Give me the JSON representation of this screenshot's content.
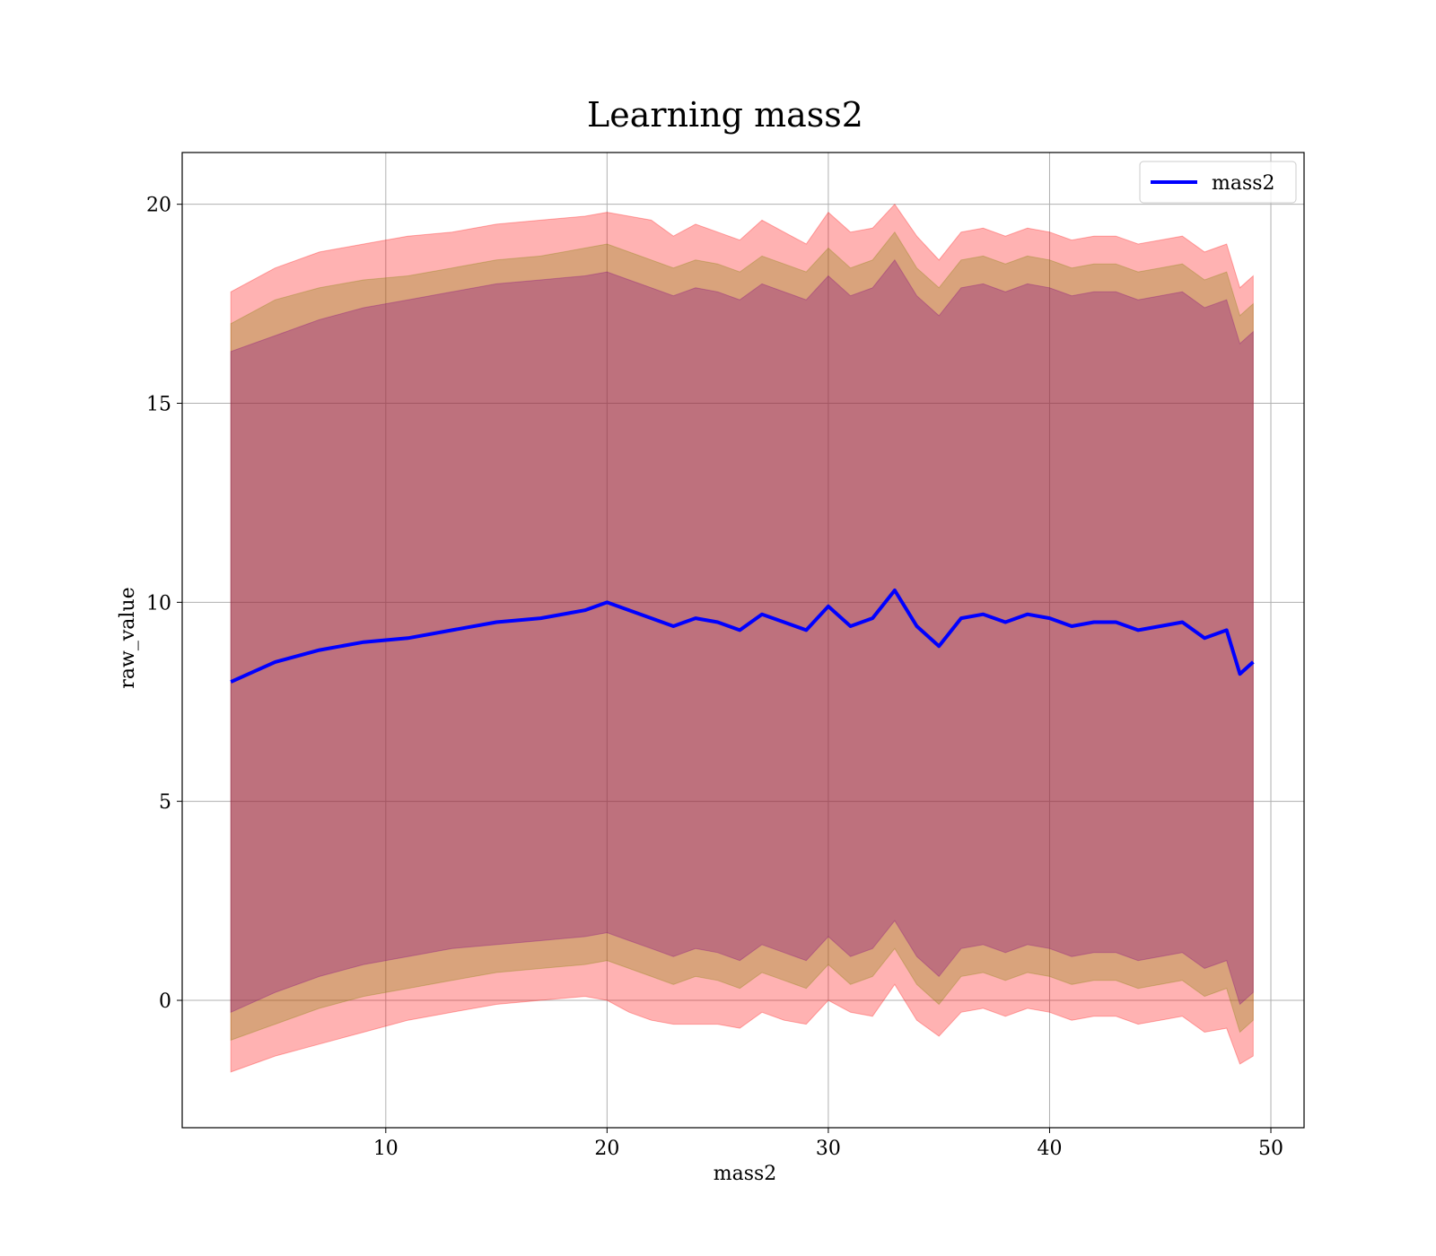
{
  "chart_data": {
    "type": "line",
    "title": "Learning mass2",
    "xlabel": "mass2",
    "ylabel": "raw_value",
    "xlim": [
      0.8,
      51.5
    ],
    "ylim": [
      -3.2,
      21.3
    ],
    "xticks": [
      10,
      20,
      30,
      40,
      50
    ],
    "yticks": [
      0,
      5,
      10,
      15,
      20
    ],
    "grid": true,
    "legend": {
      "placement": "top-right",
      "entries": [
        "mass2"
      ]
    },
    "colors": {
      "line": "#0000ff",
      "band_outer": "#ff0000",
      "band_middle": "#808000",
      "band_inner": "#800080"
    },
    "series": [
      {
        "name": "mass2",
        "x": [
          3.0,
          5.0,
          7.0,
          9.0,
          11.0,
          13.0,
          15.0,
          17.0,
          19.0,
          20.0,
          21.0,
          22.0,
          23.0,
          24.0,
          25.0,
          26.0,
          27.0,
          28.0,
          29.0,
          30.0,
          31.0,
          32.0,
          33.0,
          34.0,
          35.0,
          36.0,
          37.0,
          38.0,
          39.0,
          40.0,
          41.0,
          42.0,
          43.0,
          44.0,
          45.0,
          46.0,
          47.0,
          48.0,
          48.6,
          49.2
        ],
        "y": [
          8.0,
          8.5,
          8.8,
          9.0,
          9.1,
          9.3,
          9.5,
          9.6,
          9.8,
          10.0,
          9.8,
          9.6,
          9.4,
          9.6,
          9.5,
          9.3,
          9.7,
          9.5,
          9.3,
          9.9,
          9.4,
          9.6,
          10.3,
          9.4,
          8.9,
          9.6,
          9.7,
          9.5,
          9.7,
          9.6,
          9.4,
          9.5,
          9.5,
          9.3,
          9.4,
          9.5,
          9.1,
          9.3,
          8.2,
          8.5
        ]
      }
    ],
    "bands": [
      {
        "label": "outer",
        "x": [
          3.0,
          5.0,
          7.0,
          9.0,
          11.0,
          13.0,
          15.0,
          17.0,
          19.0,
          20.0,
          21.0,
          22.0,
          23.0,
          24.0,
          25.0,
          26.0,
          27.0,
          28.0,
          29.0,
          30.0,
          31.0,
          32.0,
          33.0,
          34.0,
          35.0,
          36.0,
          37.0,
          38.0,
          39.0,
          40.0,
          41.0,
          42.0,
          43.0,
          44.0,
          45.0,
          46.0,
          47.0,
          48.0,
          48.6,
          49.2
        ],
        "lower": [
          -1.8,
          -1.4,
          -1.1,
          -0.8,
          -0.5,
          -0.3,
          -0.1,
          0.0,
          0.1,
          0.0,
          -0.3,
          -0.5,
          -0.6,
          -0.6,
          -0.6,
          -0.7,
          -0.3,
          -0.5,
          -0.6,
          0.0,
          -0.3,
          -0.4,
          0.4,
          -0.5,
          -0.9,
          -0.3,
          -0.2,
          -0.4,
          -0.2,
          -0.3,
          -0.5,
          -0.4,
          -0.4,
          -0.6,
          -0.5,
          -0.4,
          -0.8,
          -0.7,
          -1.6,
          -1.4
        ],
        "upper": [
          17.8,
          18.4,
          18.8,
          19.0,
          19.2,
          19.3,
          19.5,
          19.6,
          19.7,
          19.8,
          19.7,
          19.6,
          19.2,
          19.5,
          19.3,
          19.1,
          19.6,
          19.3,
          19.0,
          19.8,
          19.3,
          19.4,
          20.0,
          19.2,
          18.6,
          19.3,
          19.4,
          19.2,
          19.4,
          19.3,
          19.1,
          19.2,
          19.2,
          19.0,
          19.1,
          19.2,
          18.8,
          19.0,
          17.9,
          18.2
        ]
      },
      {
        "label": "middle",
        "x": [
          3.0,
          5.0,
          7.0,
          9.0,
          11.0,
          13.0,
          15.0,
          17.0,
          19.0,
          20.0,
          21.0,
          22.0,
          23.0,
          24.0,
          25.0,
          26.0,
          27.0,
          28.0,
          29.0,
          30.0,
          31.0,
          32.0,
          33.0,
          34.0,
          35.0,
          36.0,
          37.0,
          38.0,
          39.0,
          40.0,
          41.0,
          42.0,
          43.0,
          44.0,
          45.0,
          46.0,
          47.0,
          48.0,
          48.6,
          49.2
        ],
        "lower": [
          -1.0,
          -0.6,
          -0.2,
          0.1,
          0.3,
          0.5,
          0.7,
          0.8,
          0.9,
          1.0,
          0.8,
          0.6,
          0.4,
          0.6,
          0.5,
          0.3,
          0.7,
          0.5,
          0.3,
          0.9,
          0.4,
          0.6,
          1.3,
          0.4,
          -0.1,
          0.6,
          0.7,
          0.5,
          0.7,
          0.6,
          0.4,
          0.5,
          0.5,
          0.3,
          0.4,
          0.5,
          0.1,
          0.3,
          -0.8,
          -0.5
        ],
        "upper": [
          17.0,
          17.6,
          17.9,
          18.1,
          18.2,
          18.4,
          18.6,
          18.7,
          18.9,
          19.0,
          18.8,
          18.6,
          18.4,
          18.6,
          18.5,
          18.3,
          18.7,
          18.5,
          18.3,
          18.9,
          18.4,
          18.6,
          19.3,
          18.4,
          17.9,
          18.6,
          18.7,
          18.5,
          18.7,
          18.6,
          18.4,
          18.5,
          18.5,
          18.3,
          18.4,
          18.5,
          18.1,
          18.3,
          17.2,
          17.5
        ]
      },
      {
        "label": "inner",
        "x": [
          3.0,
          5.0,
          7.0,
          9.0,
          11.0,
          13.0,
          15.0,
          17.0,
          19.0,
          20.0,
          21.0,
          22.0,
          23.0,
          24.0,
          25.0,
          26.0,
          27.0,
          28.0,
          29.0,
          30.0,
          31.0,
          32.0,
          33.0,
          34.0,
          35.0,
          36.0,
          37.0,
          38.0,
          39.0,
          40.0,
          41.0,
          42.0,
          43.0,
          44.0,
          45.0,
          46.0,
          47.0,
          48.0,
          48.6,
          49.2
        ],
        "lower": [
          -0.3,
          0.2,
          0.6,
          0.9,
          1.1,
          1.3,
          1.4,
          1.5,
          1.6,
          1.7,
          1.5,
          1.3,
          1.1,
          1.3,
          1.2,
          1.0,
          1.4,
          1.2,
          1.0,
          1.6,
          1.1,
          1.3,
          2.0,
          1.1,
          0.6,
          1.3,
          1.4,
          1.2,
          1.4,
          1.3,
          1.1,
          1.2,
          1.2,
          1.0,
          1.1,
          1.2,
          0.8,
          1.0,
          -0.1,
          0.2
        ],
        "upper": [
          16.3,
          16.7,
          17.1,
          17.4,
          17.6,
          17.8,
          18.0,
          18.1,
          18.2,
          18.3,
          18.1,
          17.9,
          17.7,
          17.9,
          17.8,
          17.6,
          18.0,
          17.8,
          17.6,
          18.2,
          17.7,
          17.9,
          18.6,
          17.7,
          17.2,
          17.9,
          18.0,
          17.8,
          18.0,
          17.9,
          17.7,
          17.8,
          17.8,
          17.6,
          17.7,
          17.8,
          17.4,
          17.6,
          16.5,
          16.8
        ]
      }
    ]
  }
}
